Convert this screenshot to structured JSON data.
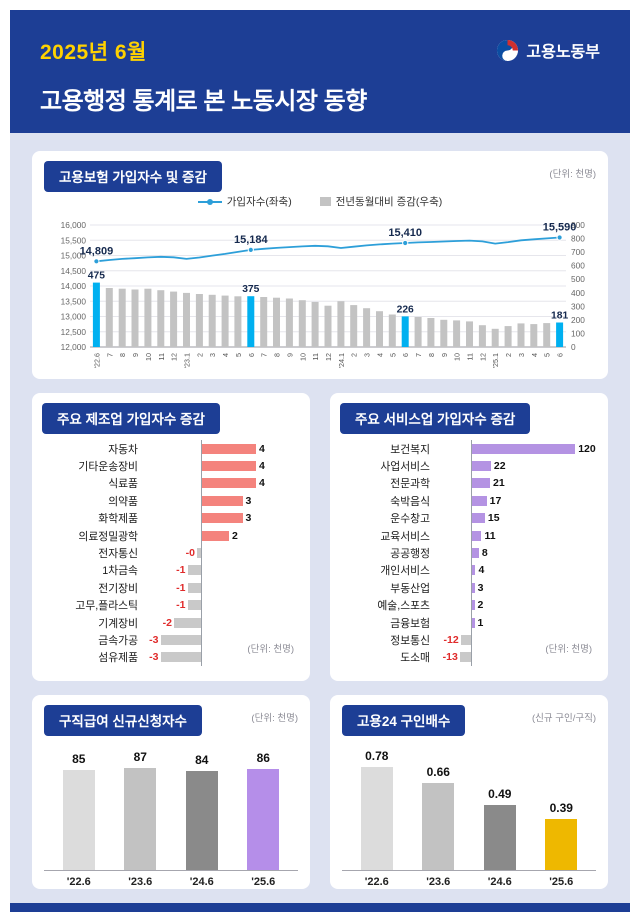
{
  "header": {
    "period": "2025년 6월",
    "title": "고용행정 통계로 본 노동시장 동향",
    "ministry": "고용노동부"
  },
  "colors": {
    "header_bg": "#1d3e95",
    "page_bg": "#dde2f1",
    "accent_cyan": "#00b0f0",
    "line_blue": "#2d9fd9",
    "bar_gray": "#c3c3c3",
    "manufacturing_pink": "#f4837d",
    "services_purple": "#b493e3",
    "benefit_purple": "#b58ee9",
    "ratio_gold": "#eeb800",
    "negative_red": "#e02b2b"
  },
  "chart_data": [
    {
      "id": "insurance",
      "type": "line",
      "title": "고용보험 가입자수 및 증감",
      "unit": "(단위: 천명)",
      "legend": [
        {
          "label": "가입자수(좌축)",
          "swatch": "line",
          "color": "#2d9fd9"
        },
        {
          "label": "전년동월대비 증감(우축)",
          "swatch": "bar",
          "color": "#c3c3c3"
        }
      ],
      "categories": [
        "'22.6",
        "7",
        "8",
        "9",
        "10",
        "11",
        "12",
        "'23.1",
        "2",
        "3",
        "4",
        "5",
        "6",
        "7",
        "8",
        "9",
        "10",
        "11",
        "12",
        "'24.1",
        "2",
        "3",
        "4",
        "5",
        "6",
        "7",
        "8",
        "9",
        "10",
        "11",
        "12",
        "'25.1",
        "2",
        "3",
        "4",
        "5",
        "6"
      ],
      "series": [
        {
          "name": "가입자수(좌축)",
          "kind": "line",
          "axis": "left",
          "color": "#2d9fd9",
          "values": [
            14809,
            14852,
            14888,
            14913,
            14938,
            14958,
            14941,
            14887,
            14936,
            14998,
            15052,
            15118,
            15184,
            15221,
            15248,
            15274,
            15298,
            15317,
            15301,
            15245,
            15288,
            15331,
            15365,
            15390,
            15410,
            15428,
            15443,
            15459,
            15476,
            15489,
            15462,
            15391,
            15438,
            15498,
            15532,
            15562,
            15590
          ]
        },
        {
          "name": "전년동월대비 증감(우축)",
          "kind": "bar",
          "axis": "right",
          "color": "#c3c3c3",
          "highlight_color": "#00b0f0",
          "highlight_indices": [
            0,
            12,
            24,
            36
          ],
          "values": [
            475,
            435,
            430,
            424,
            430,
            419,
            409,
            399,
            391,
            385,
            379,
            374,
            375,
            369,
            364,
            358,
            345,
            333,
            305,
            338,
            309,
            286,
            264,
            240,
            226,
            221,
            214,
            201,
            196,
            189,
            161,
            134,
            154,
            174,
            169,
            176,
            181
          ]
        }
      ],
      "left_axis": {
        "min": 12000,
        "max": 16000,
        "step": 500,
        "ticks": [
          "16,000",
          "15,500",
          "15,000",
          "14,500",
          "14,000",
          "13,500",
          "13,000",
          "12,500",
          "12,000"
        ]
      },
      "right_axis": {
        "min": 0,
        "max": 900,
        "step": 100,
        "ticks": [
          "900",
          "800",
          "700",
          "600",
          "500",
          "400",
          "300",
          "200",
          "100",
          "0"
        ]
      },
      "annotations": [
        {
          "index": 0,
          "line_label": "14,809",
          "bar_label": "475"
        },
        {
          "index": 12,
          "line_label": "15,184",
          "bar_label": "375"
        },
        {
          "index": 24,
          "line_label": "15,410",
          "bar_label": "226"
        },
        {
          "index": 36,
          "line_label": "15,590",
          "bar_label": "181"
        }
      ]
    },
    {
      "id": "manufacturing",
      "type": "bar",
      "orientation": "horizontal",
      "title": "주요 제조업 가입자수 증감",
      "unit": "(단위: 천명)",
      "positive_color": "#f4837d",
      "negative_color": "#c9c9c9",
      "categories": [
        "자동차",
        "기타운송장비",
        "식료품",
        "의약품",
        "화학제품",
        "의료정밀광학",
        "전자통신",
        "1차금속",
        "전기장비",
        "고무,플라스틱",
        "기계장비",
        "금속가공",
        "섬유제품"
      ],
      "values": [
        4,
        4,
        4,
        3,
        3,
        2,
        -0.3,
        -1,
        -1,
        -1,
        -2,
        -3,
        -3
      ],
      "labels": [
        "4",
        "4",
        "4",
        "3",
        "3",
        "2",
        "-0",
        "-1",
        "-1",
        "-1",
        "-2",
        "-3",
        "-3"
      ]
    },
    {
      "id": "services",
      "type": "bar",
      "orientation": "horizontal",
      "title": "주요 서비스업 가입자수 증감",
      "unit": "(단위: 천명)",
      "positive_color": "#b493e3",
      "negative_color": "#c9c9c9",
      "categories": [
        "보건복지",
        "사업서비스",
        "전문과학",
        "숙박음식",
        "운수창고",
        "교육서비스",
        "공공행정",
        "개인서비스",
        "부동산업",
        "예술,스포츠",
        "금융보험",
        "정보통신",
        "도소매"
      ],
      "values": [
        120,
        22,
        21,
        17,
        15,
        11,
        8,
        4,
        3,
        2,
        1,
        -12,
        -13
      ],
      "labels": [
        "120",
        "22",
        "21",
        "17",
        "15",
        "11",
        "8",
        "4",
        "3",
        "2",
        "1",
        "-12",
        "-13"
      ]
    },
    {
      "id": "benefit",
      "type": "bar",
      "orientation": "vertical",
      "title": "구직급여 신규신청자수",
      "unit": "(단위: 천명)",
      "categories": [
        "'22.6",
        "'23.6",
        "'24.6",
        "'25.6"
      ],
      "values": [
        85,
        87,
        84,
        86
      ],
      "labels": [
        "85",
        "87",
        "84",
        "86"
      ],
      "colors": [
        "#dcdcdc",
        "#c2c2c2",
        "#8a8a8a",
        "#b58ee9"
      ]
    },
    {
      "id": "ratio",
      "type": "bar",
      "orientation": "vertical",
      "title": "고용24 구인배수",
      "unit": "(신규 구인/구직)",
      "categories": [
        "'22.6",
        "'23.6",
        "'24.6",
        "'25.6"
      ],
      "values": [
        0.78,
        0.66,
        0.49,
        0.39
      ],
      "labels": [
        "0.78",
        "0.66",
        "0.49",
        "0.39"
      ],
      "colors": [
        "#dcdcdc",
        "#c2c2c2",
        "#8a8a8a",
        "#eeb800"
      ]
    }
  ]
}
